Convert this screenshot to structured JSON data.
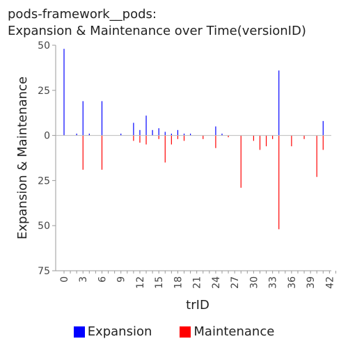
{
  "chart_data": {
    "type": "bar",
    "title_line1": "pods-framework__pods:",
    "title_line2": "Expansion & Maintenance over Time(versionID)",
    "xlabel": "trID",
    "ylabel": "Expansion & Maintenance",
    "xlim": [
      0,
      43
    ],
    "ylim": [
      -75,
      50
    ],
    "y_ticks": [
      {
        "value": 50,
        "label": "50"
      },
      {
        "value": 25,
        "label": "25"
      },
      {
        "value": 0,
        "label": "0"
      },
      {
        "value": -25,
        "label": "25"
      },
      {
        "value": -50,
        "label": "50"
      },
      {
        "value": -75,
        "label": "75"
      }
    ],
    "x_ticks": [
      {
        "value": 0,
        "label": "0"
      },
      {
        "value": 3,
        "label": "3"
      },
      {
        "value": 6,
        "label": "6"
      },
      {
        "value": 9,
        "label": "9"
      },
      {
        "value": 12,
        "label": "12"
      },
      {
        "value": 15,
        "label": "15"
      },
      {
        "value": 18,
        "label": "18"
      },
      {
        "value": 21,
        "label": "21"
      },
      {
        "value": 24,
        "label": "24"
      },
      {
        "value": 27,
        "label": "27"
      },
      {
        "value": 30,
        "label": "30"
      },
      {
        "value": 33,
        "label": "33"
      },
      {
        "value": 36,
        "label": "36"
      },
      {
        "value": 39,
        "label": "39"
      },
      {
        "value": 42,
        "label": "42"
      }
    ],
    "series": [
      {
        "name": "Expansion",
        "color": "#0000ff",
        "points": [
          {
            "x": 0,
            "y": 48
          },
          {
            "x": 2,
            "y": 1
          },
          {
            "x": 3,
            "y": 19
          },
          {
            "x": 4,
            "y": 1
          },
          {
            "x": 6,
            "y": 19
          },
          {
            "x": 9,
            "y": 1
          },
          {
            "x": 11,
            "y": 7
          },
          {
            "x": 12,
            "y": 3
          },
          {
            "x": 13,
            "y": 11
          },
          {
            "x": 14,
            "y": 3
          },
          {
            "x": 15,
            "y": 4
          },
          {
            "x": 16,
            "y": 2
          },
          {
            "x": 17,
            "y": 1
          },
          {
            "x": 18,
            "y": 3
          },
          {
            "x": 19,
            "y": 1
          },
          {
            "x": 20,
            "y": 1
          },
          {
            "x": 24,
            "y": 5
          },
          {
            "x": 25,
            "y": 1
          },
          {
            "x": 34,
            "y": 36
          },
          {
            "x": 41,
            "y": 8
          }
        ]
      },
      {
        "name": "Maintenance",
        "color": "#ff0000",
        "points": [
          {
            "x": 3,
            "y": -19
          },
          {
            "x": 6,
            "y": -19
          },
          {
            "x": 11,
            "y": -3
          },
          {
            "x": 12,
            "y": -4
          },
          {
            "x": 13,
            "y": -5
          },
          {
            "x": 15,
            "y": -2
          },
          {
            "x": 16,
            "y": -15
          },
          {
            "x": 17,
            "y": -5
          },
          {
            "x": 18,
            "y": -2
          },
          {
            "x": 19,
            "y": -3
          },
          {
            "x": 22,
            "y": -2
          },
          {
            "x": 24,
            "y": -7
          },
          {
            "x": 26,
            "y": -1
          },
          {
            "x": 28,
            "y": -29
          },
          {
            "x": 30,
            "y": -3
          },
          {
            "x": 31,
            "y": -8
          },
          {
            "x": 32,
            "y": -6
          },
          {
            "x": 33,
            "y": -2
          },
          {
            "x": 34,
            "y": -52
          },
          {
            "x": 36,
            "y": -6
          },
          {
            "x": 38,
            "y": -2
          },
          {
            "x": 40,
            "y": -23
          },
          {
            "x": 41,
            "y": -8
          }
        ]
      }
    ],
    "legend_position": "bottom",
    "grid": false
  }
}
